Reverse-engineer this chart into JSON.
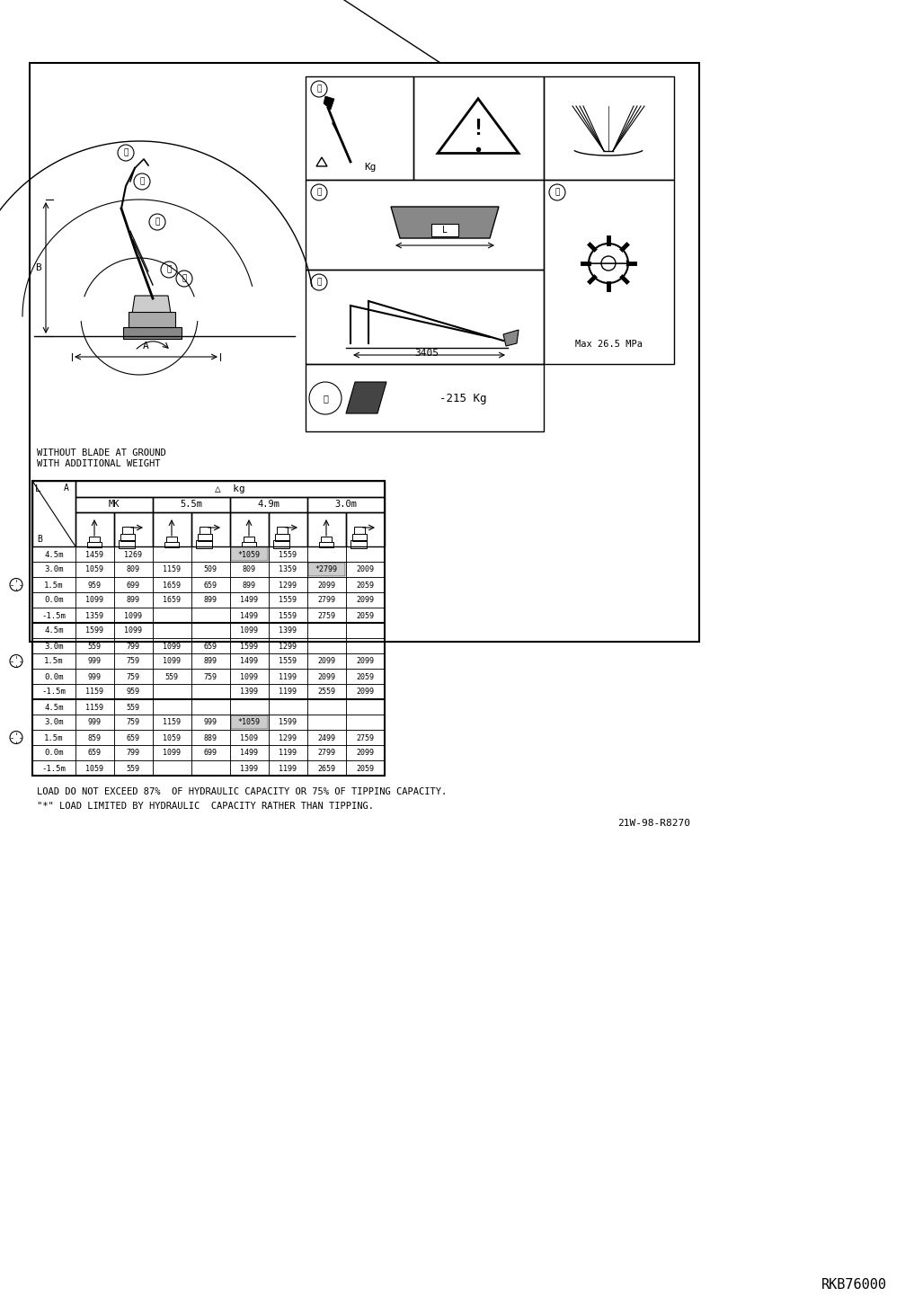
{
  "bg_color": "#ffffff",
  "text_without_blade": "WITHOUT BLADE AT GROUND\nWITH ADDITIONAL WEIGHT",
  "text_footnote1": "LOAD DO NOT EXCEED 87%  OF HYDRAULIC CAPACITY OR 75% OF TIPPING CAPACITY.",
  "text_footnote2": "\"*\" LOAD LIMITED BY HYDRAULIC  CAPACITY RATHER THAN TIPPING.",
  "text_ref": "21W-98-R8270",
  "text_rkb": "RKB76000",
  "col_headers": [
    "MK",
    "5.5m",
    "4.9m",
    "3.0m"
  ],
  "table_data": [
    [
      "4.5m",
      "1459",
      "1269",
      "",
      "",
      "*1059",
      "1559",
      "",
      ""
    ],
    [
      "3.0m",
      "1059",
      "809",
      "1159",
      "509",
      "809",
      "1359",
      "*2799",
      "2009"
    ],
    [
      "1.5m",
      "959",
      "699",
      "1659",
      "659",
      "899",
      "1299",
      "2099",
      "2059"
    ],
    [
      "0.0m",
      "1099",
      "899",
      "1659",
      "899",
      "1499",
      "1559",
      "2799",
      "2099"
    ],
    [
      "-1.5m",
      "1359",
      "1099",
      "",
      "",
      "1499",
      "1559",
      "2759",
      "2059"
    ],
    [
      "4.5m",
      "1599",
      "1099",
      "",
      "",
      "1099",
      "1399",
      "",
      ""
    ],
    [
      "3.0m",
      "559",
      "799",
      "1099",
      "659",
      "1599",
      "1299",
      "",
      ""
    ],
    [
      "1.5m",
      "999",
      "759",
      "1099",
      "899",
      "1499",
      "1559",
      "2099",
      "2099"
    ],
    [
      "0.0m",
      "999",
      "759",
      "559",
      "759",
      "1099",
      "1199",
      "2099",
      "2059"
    ],
    [
      "-1.5m",
      "1159",
      "959",
      "",
      "",
      "1399",
      "1199",
      "2559",
      "2099"
    ],
    [
      "4.5m",
      "1159",
      "559",
      "",
      "",
      "",
      "",
      "",
      ""
    ],
    [
      "3.0m",
      "999",
      "759",
      "1159",
      "999",
      "*1059",
      "1599",
      "",
      ""
    ],
    [
      "1.5m",
      "859",
      "659",
      "1059",
      "889",
      "1509",
      "1299",
      "2499",
      "2759"
    ],
    [
      "0.0m",
      "659",
      "799",
      "1099",
      "699",
      "1499",
      "1199",
      "2799",
      "2099"
    ],
    [
      "-1.5m",
      "1059",
      "559",
      "",
      "",
      "1399",
      "1199",
      "2659",
      "2059"
    ]
  ]
}
